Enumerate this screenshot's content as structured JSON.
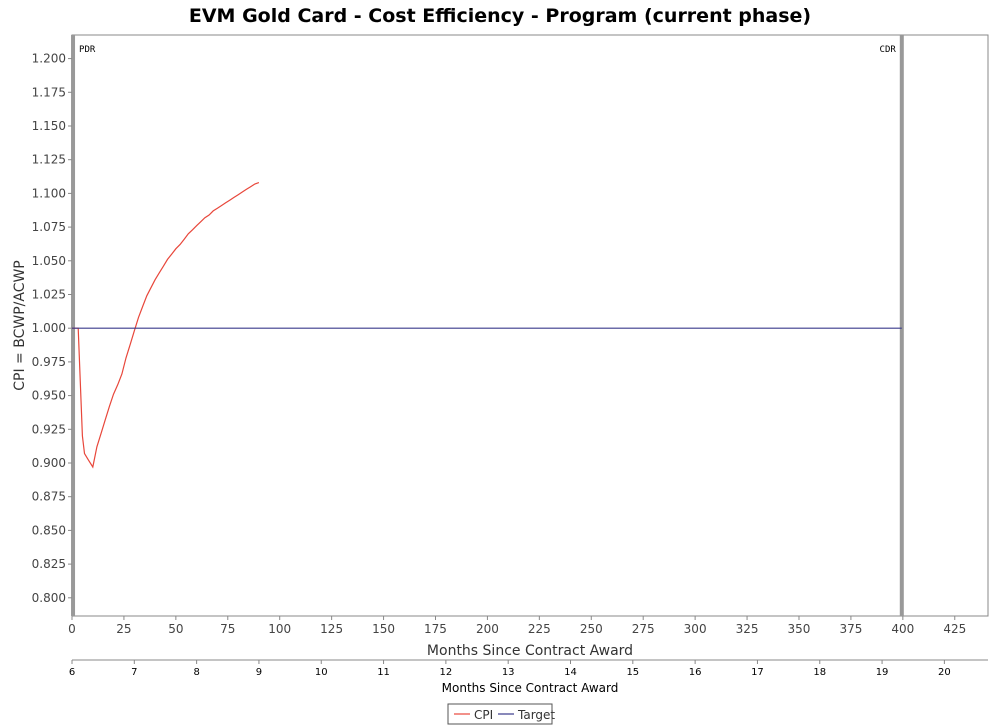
{
  "chart_data": {
    "type": "line",
    "title": "EVM Gold Card - Cost Efficiency - Program (current phase)",
    "xlabel": "Months Since Contract Award",
    "ylabel": "CPI = BCWP/ACWP",
    "xlim": [
      0,
      441
    ],
    "ylim": [
      0.7865,
      1.2175
    ],
    "x_ticks": [
      0,
      25,
      50,
      75,
      100,
      125,
      150,
      175,
      200,
      225,
      250,
      275,
      300,
      325,
      350,
      375,
      400,
      425
    ],
    "y_ticks": [
      0.8,
      0.825,
      0.85,
      0.875,
      0.9,
      0.925,
      0.95,
      0.975,
      1.0,
      1.025,
      1.05,
      1.075,
      1.1,
      1.125,
      1.15,
      1.175,
      1.2
    ],
    "y_tick_labels": [
      "0.800",
      "0.825",
      "0.850",
      "0.875",
      "0.900",
      "0.925",
      "0.950",
      "0.975",
      "1.000",
      "1.025",
      "1.050",
      "1.075",
      "1.100",
      "1.125",
      "1.150",
      "1.175",
      "1.200"
    ],
    "secondary_x_axis": {
      "label": "Months Since Contract Award",
      "ticks": [
        6,
        7,
        8,
        9,
        10,
        11,
        12,
        13,
        14,
        15,
        16,
        17,
        18,
        19,
        20
      ],
      "range": [
        6,
        20.7
      ]
    },
    "markers": [
      {
        "label": "PDR",
        "x": 0.5
      },
      {
        "label": "CDR",
        "x": 399.5
      }
    ],
    "series": [
      {
        "name": "CPI",
        "color": "#e8473b",
        "x": [
          0,
          3,
          5,
          6,
          8,
          10,
          12,
          14,
          16,
          18,
          20,
          22,
          24,
          26,
          28,
          30,
          32,
          34,
          36,
          38,
          40,
          42,
          44,
          46,
          48,
          50,
          52,
          54,
          56,
          58,
          60,
          62,
          64,
          66,
          68,
          70,
          72,
          74,
          76,
          78,
          80,
          82,
          84,
          86,
          88,
          90
        ],
        "values": [
          1.0,
          1.0,
          0.92,
          0.907,
          0.902,
          0.897,
          0.912,
          0.922,
          0.932,
          0.942,
          0.951,
          0.958,
          0.966,
          0.978,
          0.988,
          0.998,
          1.008,
          1.016,
          1.024,
          1.03,
          1.036,
          1.041,
          1.046,
          1.051,
          1.055,
          1.059,
          1.062,
          1.066,
          1.07,
          1.073,
          1.076,
          1.079,
          1.082,
          1.084,
          1.087,
          1.089,
          1.091,
          1.093,
          1.095,
          1.097,
          1.099,
          1.101,
          1.103,
          1.105,
          1.107,
          1.108
        ]
      },
      {
        "name": "Target",
        "color": "#3a3a8c",
        "x": [
          0,
          399.5
        ],
        "values": [
          1.0,
          1.0
        ]
      }
    ],
    "legend": {
      "placement": "bottom-center",
      "entries": [
        "CPI",
        "Target"
      ]
    },
    "grid": false
  }
}
